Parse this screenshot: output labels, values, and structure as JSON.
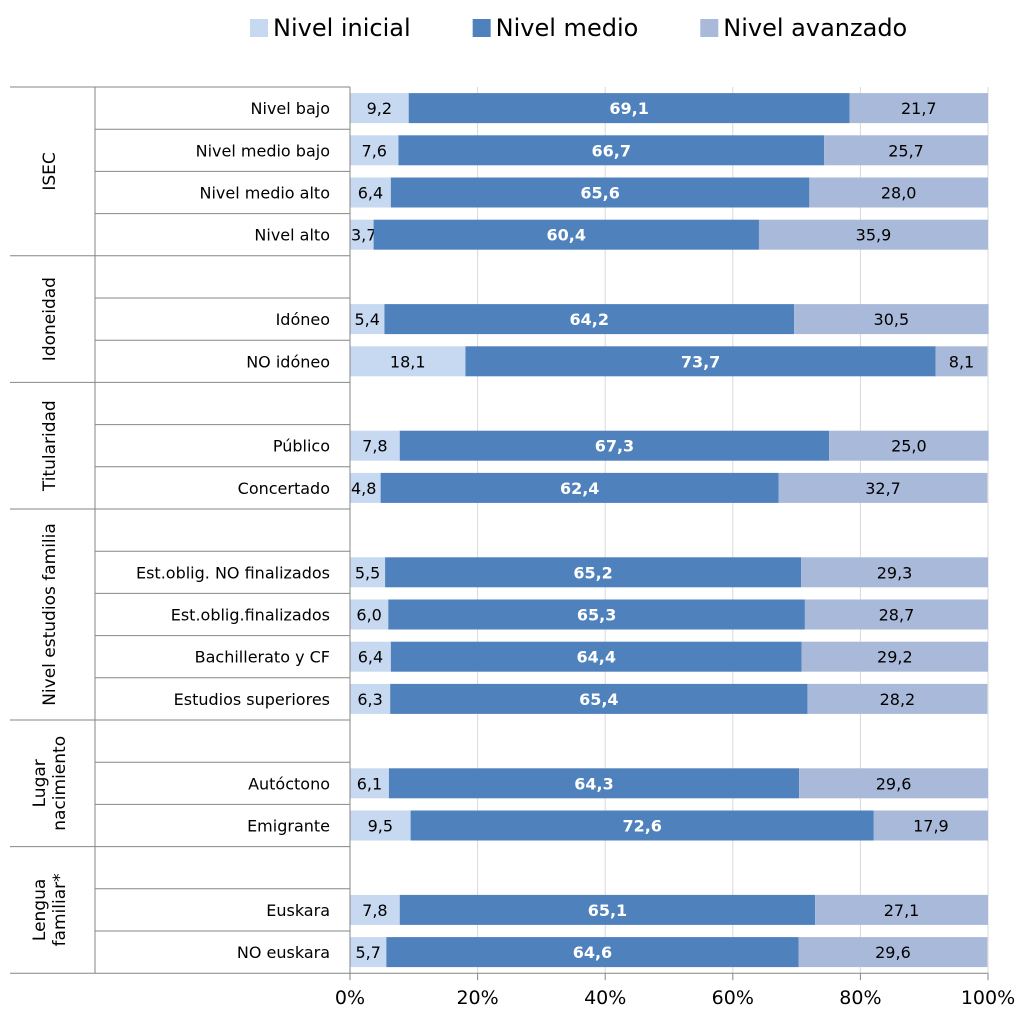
{
  "chart_data": {
    "type": "bar",
    "orientation": "horizontal",
    "stacked": true,
    "legend_position": "top",
    "grid": true,
    "x_range": [
      0,
      100
    ],
    "x_ticks": [
      "0%",
      "20%",
      "40%",
      "60%",
      "80%",
      "100%"
    ],
    "series": [
      {
        "name": "Nivel inicial",
        "color": "#c6d9f1"
      },
      {
        "name": "Nivel medio",
        "color": "#4f81bd"
      },
      {
        "name": "Nivel avanzado",
        "color": "#a9b9d9"
      }
    ],
    "groups": [
      {
        "name": [
          "ISEC"
        ],
        "rows": [
          {
            "label": "Nivel bajo",
            "values": [
              9.2,
              69.1,
              21.7
            ],
            "labels": [
              "9,2",
              "69,1",
              "21,7"
            ]
          },
          {
            "label": "Nivel medio bajo",
            "values": [
              7.6,
              66.7,
              25.7
            ],
            "labels": [
              "7,6",
              "66,7",
              "25,7"
            ]
          },
          {
            "label": "Nivel medio alto",
            "values": [
              6.4,
              65.6,
              28.0
            ],
            "labels": [
              "6,4",
              "65,6",
              "28,0"
            ]
          },
          {
            "label": "Nivel alto",
            "values": [
              3.7,
              60.4,
              35.9
            ],
            "labels": [
              "3,7",
              "60,4",
              "35,9"
            ]
          }
        ]
      },
      {
        "name": [
          "Idoneidad"
        ],
        "rows": [
          {
            "label": "",
            "values": null,
            "labels": null
          },
          {
            "label": "Idóneo",
            "values": [
              5.4,
              64.2,
              30.5
            ],
            "labels": [
              "5,4",
              "64,2",
              "30,5"
            ]
          },
          {
            "label": "NO idóneo",
            "values": [
              18.1,
              73.7,
              8.1
            ],
            "labels": [
              "18,1",
              "73,7",
              "8,1"
            ]
          }
        ]
      },
      {
        "name": [
          "Titularidad"
        ],
        "rows": [
          {
            "label": "",
            "values": null,
            "labels": null
          },
          {
            "label": "Público",
            "values": [
              7.8,
              67.3,
              25.0
            ],
            "labels": [
              "7,8",
              "67,3",
              "25,0"
            ]
          },
          {
            "label": "Concertado",
            "values": [
              4.8,
              62.4,
              32.7
            ],
            "labels": [
              "4,8",
              "62,4",
              "32,7"
            ]
          }
        ]
      },
      {
        "name": [
          "Nivel estudios familia"
        ],
        "rows": [
          {
            "label": "",
            "values": null,
            "labels": null
          },
          {
            "label": "Est.oblig. NO finalizados",
            "values": [
              5.5,
              65.2,
              29.3
            ],
            "labels": [
              "5,5",
              "65,2",
              "29,3"
            ]
          },
          {
            "label": "Est.oblig.finalizados",
            "values": [
              6.0,
              65.3,
              28.7
            ],
            "labels": [
              "6,0",
              "65,3",
              "28,7"
            ]
          },
          {
            "label": "Bachillerato y CF",
            "values": [
              6.4,
              64.4,
              29.2
            ],
            "labels": [
              "6,4",
              "64,4",
              "29,2"
            ]
          },
          {
            "label": "Estudios superiores",
            "values": [
              6.3,
              65.4,
              28.2
            ],
            "labels": [
              "6,3",
              "65,4",
              "28,2"
            ]
          }
        ]
      },
      {
        "name": [
          "Lugar",
          "nacimiento"
        ],
        "rows": [
          {
            "label": "",
            "values": null,
            "labels": null
          },
          {
            "label": "Autóctono",
            "values": [
              6.1,
              64.3,
              29.6
            ],
            "labels": [
              "6,1",
              "64,3",
              "29,6"
            ]
          },
          {
            "label": "Emigrante",
            "values": [
              9.5,
              72.6,
              17.9
            ],
            "labels": [
              "9,5",
              "72,6",
              "17,9"
            ]
          }
        ]
      },
      {
        "name": [
          "Lengua",
          "familiar*"
        ],
        "rows": [
          {
            "label": "",
            "values": null,
            "labels": null
          },
          {
            "label": "Euskara",
            "values": [
              7.8,
              65.1,
              27.1
            ],
            "labels": [
              "7,8",
              "65,1",
              "27,1"
            ]
          },
          {
            "label": "NO euskara",
            "values": [
              5.7,
              64.6,
              29.6
            ],
            "labels": [
              "5,7",
              "64,6",
              "29,6"
            ]
          }
        ]
      }
    ]
  }
}
